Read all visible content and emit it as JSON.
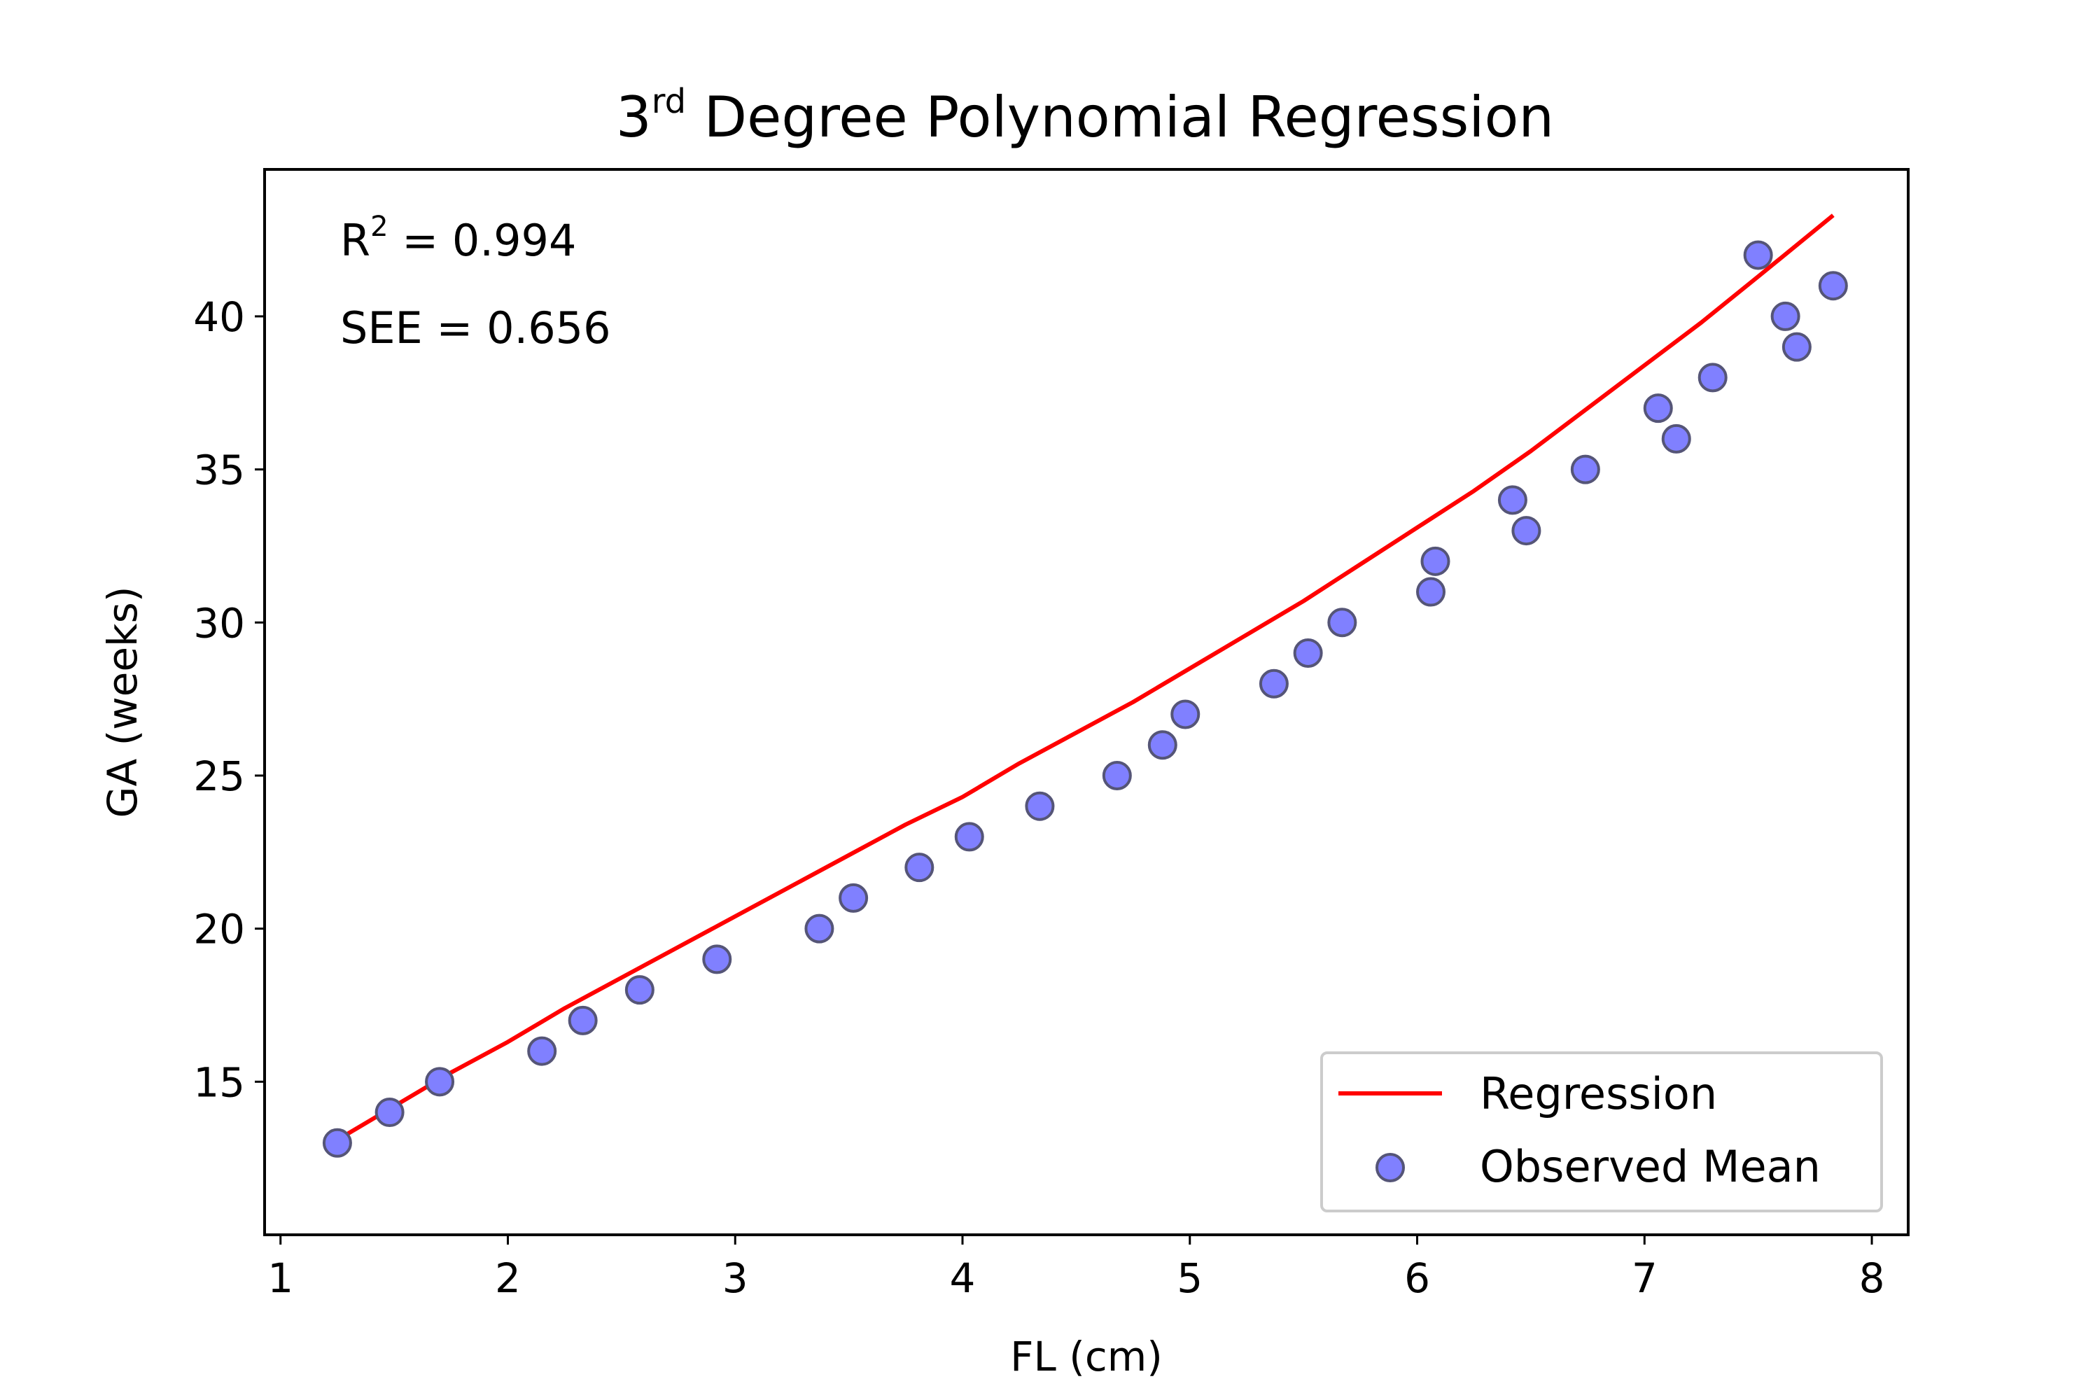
{
  "chart_data": {
    "type": "scatter",
    "title_main": "3",
    "title_sup": "rd",
    "title_rest": " Degree Polynomial Regression",
    "xlabel": "FL (cm)",
    "ylabel": "GA (weeks)",
    "xlim": [
      0.93,
      8.16
    ],
    "ylim": [
      10.0,
      44.8
    ],
    "xticks": [
      1,
      2,
      3,
      4,
      5,
      6,
      7,
      8
    ],
    "yticks": [
      15,
      20,
      25,
      30,
      35,
      40
    ],
    "grid": false,
    "legend_position": "lower-right",
    "annotations": {
      "r2_base": "R",
      "r2_sup": "2",
      "r2_rest": " = 0.994",
      "see": "SEE = 0.656"
    },
    "series": [
      {
        "name": "Regression",
        "kind": "line",
        "color": "#ff0000",
        "x": [
          1.25,
          1.5,
          1.75,
          2.0,
          2.25,
          2.5,
          2.75,
          3.0,
          3.25,
          3.5,
          3.75,
          4.0,
          4.25,
          4.5,
          4.75,
          5.0,
          5.25,
          5.5,
          5.75,
          6.0,
          6.25,
          6.5,
          6.75,
          7.0,
          7.25,
          7.5,
          7.83
        ],
        "y": [
          13.1,
          14.2,
          15.3,
          16.3,
          17.4,
          18.4,
          19.4,
          20.4,
          21.4,
          22.4,
          23.4,
          24.3,
          25.4,
          26.4,
          27.4,
          28.5,
          29.6,
          30.7,
          31.9,
          33.1,
          34.3,
          35.6,
          37.0,
          38.4,
          39.8,
          41.3,
          43.3
        ]
      },
      {
        "name": "Observed Mean",
        "kind": "scatter",
        "color": "#8080ff",
        "edge_color": "#555577",
        "x": [
          1.25,
          1.48,
          1.7,
          2.15,
          2.33,
          2.58,
          2.92,
          3.37,
          3.52,
          3.81,
          4.03,
          4.34,
          4.68,
          4.88,
          4.98,
          5.37,
          5.52,
          5.67,
          6.06,
          6.08,
          6.42,
          6.48,
          6.74,
          7.06,
          7.14,
          7.3,
          7.5,
          7.62,
          7.67,
          7.83
        ],
        "y": [
          13,
          14,
          15,
          16,
          17,
          18,
          19,
          20,
          21,
          22,
          23,
          24,
          25,
          26,
          27,
          28,
          29,
          30,
          31,
          32,
          34,
          33,
          35,
          37,
          36,
          38,
          42,
          40,
          39,
          41
        ]
      }
    ]
  }
}
